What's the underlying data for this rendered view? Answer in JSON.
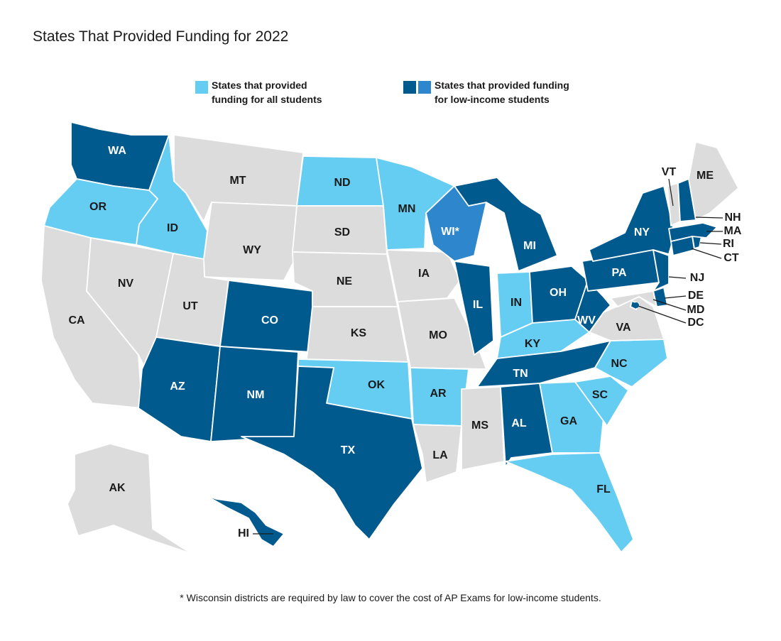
{
  "title": "States That Provided Funding for 2022",
  "colors": {
    "all_students": "#66cdf2",
    "low_income": "#005a8e",
    "low_income_alt": "#2e86cc",
    "none": "#dcdcdc",
    "label_dark": "#1a1a1a",
    "label_light": "#ffffff"
  },
  "legend": {
    "all_students": "States that provided\nfunding for all students",
    "low_income": "States that provided funding\nfor low-income students"
  },
  "footnote": "* Wisconsin districts are required by law to cover the cost of AP Exams for low-income students.",
  "states": [
    {
      "id": "WA",
      "label": "WA",
      "category": "low_income"
    },
    {
      "id": "OR",
      "label": "OR",
      "category": "all_students"
    },
    {
      "id": "CA",
      "label": "CA",
      "category": "none"
    },
    {
      "id": "NV",
      "label": "NV",
      "category": "none"
    },
    {
      "id": "ID",
      "label": "ID",
      "category": "all_students"
    },
    {
      "id": "MT",
      "label": "MT",
      "category": "none"
    },
    {
      "id": "WY",
      "label": "WY",
      "category": "none"
    },
    {
      "id": "UT",
      "label": "UT",
      "category": "none"
    },
    {
      "id": "AZ",
      "label": "AZ",
      "category": "low_income"
    },
    {
      "id": "CO",
      "label": "CO",
      "category": "low_income"
    },
    {
      "id": "NM",
      "label": "NM",
      "category": "low_income"
    },
    {
      "id": "ND",
      "label": "ND",
      "category": "all_students"
    },
    {
      "id": "SD",
      "label": "SD",
      "category": "none"
    },
    {
      "id": "NE",
      "label": "NE",
      "category": "none"
    },
    {
      "id": "KS",
      "label": "KS",
      "category": "none"
    },
    {
      "id": "OK",
      "label": "OK",
      "category": "all_students"
    },
    {
      "id": "TX",
      "label": "TX",
      "category": "low_income"
    },
    {
      "id": "MN",
      "label": "MN",
      "category": "all_students"
    },
    {
      "id": "IA",
      "label": "IA",
      "category": "none"
    },
    {
      "id": "MO",
      "label": "MO",
      "category": "none"
    },
    {
      "id": "AR",
      "label": "AR",
      "category": "all_students"
    },
    {
      "id": "LA",
      "label": "LA",
      "category": "none"
    },
    {
      "id": "WI",
      "label": "WI*",
      "category": "low_income_alt"
    },
    {
      "id": "IL",
      "label": "IL",
      "category": "low_income"
    },
    {
      "id": "MI",
      "label": "MI",
      "category": "low_income"
    },
    {
      "id": "IN",
      "label": "IN",
      "category": "all_students"
    },
    {
      "id": "OH",
      "label": "OH",
      "category": "low_income"
    },
    {
      "id": "KY",
      "label": "KY",
      "category": "all_students"
    },
    {
      "id": "TN",
      "label": "TN",
      "category": "low_income"
    },
    {
      "id": "MS",
      "label": "MS",
      "category": "none"
    },
    {
      "id": "AL",
      "label": "AL",
      "category": "low_income"
    },
    {
      "id": "GA",
      "label": "GA",
      "category": "all_students"
    },
    {
      "id": "FL",
      "label": "FL",
      "category": "all_students"
    },
    {
      "id": "SC",
      "label": "SC",
      "category": "all_students"
    },
    {
      "id": "NC",
      "label": "NC",
      "category": "all_students"
    },
    {
      "id": "VA",
      "label": "VA",
      "category": "none"
    },
    {
      "id": "WV",
      "label": "WV",
      "category": "low_income"
    },
    {
      "id": "PA",
      "label": "PA",
      "category": "low_income"
    },
    {
      "id": "NY",
      "label": "NY",
      "category": "low_income"
    },
    {
      "id": "NJ",
      "label": "NJ",
      "category": "low_income"
    },
    {
      "id": "DE",
      "label": "DE",
      "category": "low_income"
    },
    {
      "id": "MD",
      "label": "MD",
      "category": "none"
    },
    {
      "id": "DC",
      "label": "DC",
      "category": "low_income"
    },
    {
      "id": "CT",
      "label": "CT",
      "category": "low_income"
    },
    {
      "id": "RI",
      "label": "RI",
      "category": "low_income"
    },
    {
      "id": "MA",
      "label": "MA",
      "category": "low_income"
    },
    {
      "id": "VT",
      "label": "VT",
      "category": "none"
    },
    {
      "id": "NH",
      "label": "NH",
      "category": "low_income"
    },
    {
      "id": "ME",
      "label": "ME",
      "category": "none"
    },
    {
      "id": "AK",
      "label": "AK",
      "category": "none"
    },
    {
      "id": "HI",
      "label": "HI",
      "category": "low_income"
    }
  ]
}
